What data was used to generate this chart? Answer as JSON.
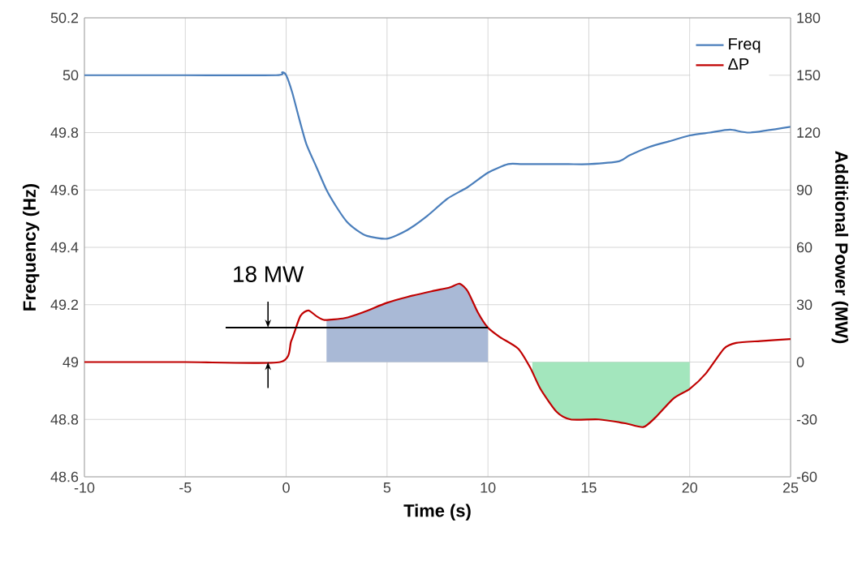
{
  "chart_data": {
    "type": "line",
    "xlabel": "Time (s)",
    "ylabel": "Frequency (Hz)",
    "y2label": "Additional Power (MW)",
    "xlim": [
      -10,
      25
    ],
    "xticks": [
      -10,
      -5,
      0,
      5,
      10,
      15,
      20,
      25
    ],
    "ylim": [
      48.6,
      50.2
    ],
    "yticks": [
      {
        "value": 48.6,
        "label": "48.6"
      },
      {
        "value": 48.8,
        "label": "48.8"
      },
      {
        "value": 49,
        "label": "49"
      },
      {
        "value": 49.2,
        "label": "49.2"
      },
      {
        "value": 49.4,
        "label": "49.4"
      },
      {
        "value": 49.6,
        "label": "49.6"
      },
      {
        "value": 49.8,
        "label": "49.8"
      },
      {
        "value": 50,
        "label": "50"
      },
      {
        "value": 50.2,
        "label": "50.2"
      }
    ],
    "y2lim": [
      -60,
      180
    ],
    "y2ticks": [
      -60,
      -30,
      0,
      30,
      60,
      90,
      120,
      150,
      180
    ],
    "grid": true,
    "legend": "top right",
    "marker": "none",
    "line_style": "solid",
    "series": [
      {
        "name": "Freq",
        "color": "#4a7ebb",
        "x": [
          -10,
          -5,
          -0.5,
          -0.2,
          0,
          0.3,
          0.6,
          1,
          1.5,
          2,
          2.5,
          3,
          3.5,
          4,
          5,
          6,
          7,
          8,
          9,
          10,
          11,
          11.7,
          13,
          14,
          15,
          16.5,
          17,
          18,
          19,
          20,
          21,
          22,
          23,
          25
        ],
        "values": [
          50,
          50,
          50,
          50.01,
          50,
          49.94,
          49.86,
          49.76,
          49.68,
          49.6,
          49.54,
          49.49,
          49.46,
          49.44,
          49.43,
          49.46,
          49.51,
          49.57,
          49.61,
          49.66,
          49.69,
          49.69,
          49.69,
          49.69,
          49.69,
          49.7,
          49.72,
          49.75,
          49.77,
          49.79,
          49.8,
          49.81,
          49.8,
          49.82
        ]
      },
      {
        "type": "area",
        "axis": "y2",
        "color": "#a9b9d6",
        "x": [
          2,
          2.9,
          3.8,
          5,
          6,
          7.2,
          8.1,
          8.6,
          9,
          9.5,
          10
        ],
        "values": [
          22,
          23,
          26,
          31,
          34,
          37,
          39,
          41,
          37,
          26,
          18
        ]
      },
      {
        "type": "area",
        "axis": "y2",
        "color": "#a3e6bd",
        "x": [
          12.2,
          12.6,
          13.4,
          14.1,
          15.5,
          16.8,
          17.7,
          18.3,
          19.2,
          20
        ],
        "values": [
          -5,
          -14,
          -26,
          -30,
          -30,
          -32,
          -34,
          -29,
          -19,
          -14
        ]
      },
      {
        "name": "ΔP",
        "color": "#c00000",
        "axis": "y2",
        "x": [
          -10,
          -5,
          -0.3,
          0.25,
          0.7,
          1.1,
          1.5,
          1.9,
          2.9,
          3.8,
          5,
          6,
          7.2,
          8.1,
          8.6,
          9,
          9.5,
          10,
          10.6,
          11.5,
          12.1,
          12.6,
          13.4,
          14.1,
          15.5,
          16.8,
          17.7,
          18.3,
          19.2,
          20,
          20.8,
          21.7,
          22.3,
          23.5,
          25
        ],
        "values": [
          0,
          0,
          0,
          11,
          24,
          27,
          24,
          22,
          23,
          26,
          31,
          34,
          37,
          39,
          41,
          37,
          26,
          18,
          13,
          7,
          -3,
          -14,
          -26,
          -30,
          -30,
          -32,
          -34,
          -29,
          -19,
          -14,
          -6,
          7,
          10,
          11,
          12
        ]
      }
    ],
    "ref_lines": [
      {
        "axis": "y2",
        "value": 18,
        "label": "18 MW"
      }
    ]
  }
}
